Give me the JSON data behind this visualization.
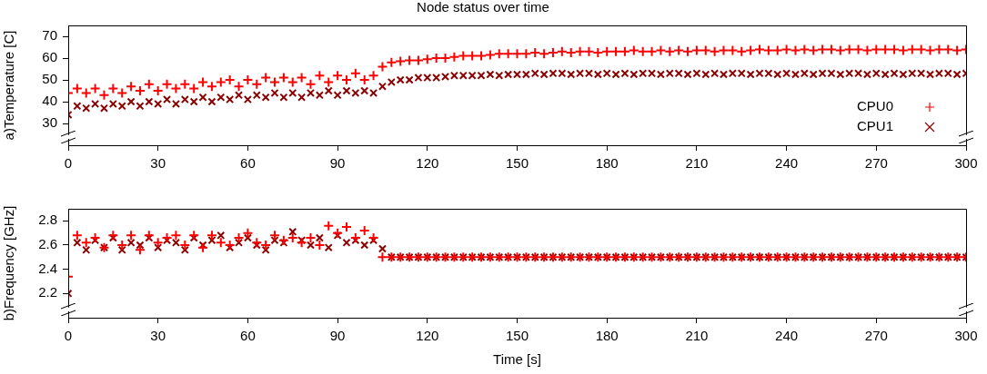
{
  "chart_data": [
    {
      "type": "scatter",
      "title": "Node status over time",
      "ylabel": "a)Temperature [C]",
      "x": [
        0,
        3,
        6,
        9,
        12,
        15,
        18,
        21,
        24,
        27,
        30,
        33,
        36,
        39,
        42,
        45,
        48,
        51,
        54,
        57,
        60,
        63,
        66,
        69,
        72,
        75,
        78,
        81,
        84,
        87,
        90,
        93,
        96,
        99,
        102,
        105,
        108,
        111,
        114,
        117,
        120,
        123,
        126,
        129,
        132,
        135,
        138,
        141,
        144,
        147,
        150,
        153,
        156,
        159,
        162,
        165,
        168,
        171,
        174,
        177,
        180,
        183,
        186,
        189,
        192,
        195,
        198,
        201,
        204,
        207,
        210,
        213,
        216,
        219,
        222,
        225,
        228,
        231,
        234,
        237,
        240,
        243,
        246,
        249,
        252,
        255,
        258,
        261,
        264,
        267,
        270,
        273,
        276,
        279,
        282,
        285,
        288,
        291,
        294,
        297,
        300
      ],
      "series": [
        {
          "name": "CPU0",
          "color": "#ff0000",
          "marker": "cross",
          "values": [
            44,
            46,
            44,
            46,
            43,
            46,
            44,
            47,
            45,
            48,
            45,
            48,
            46,
            48,
            46,
            49,
            47,
            49,
            50,
            47,
            50,
            48,
            51,
            49,
            51,
            49,
            51,
            48,
            52,
            49,
            52,
            50,
            53,
            50,
            52,
            56,
            58,
            58.5,
            59,
            59,
            59.5,
            60,
            60,
            60.5,
            61,
            61,
            61,
            61.5,
            62,
            62,
            62,
            62,
            62.5,
            62,
            62.5,
            63,
            62.5,
            63,
            63,
            62.5,
            63,
            63,
            63,
            63.5,
            63,
            63,
            63.5,
            63,
            63.5,
            63,
            63.5,
            63.5,
            63,
            63.5,
            63.5,
            63,
            63.5,
            64,
            63.5,
            63.5,
            64,
            63.5,
            64,
            63.5,
            64,
            64,
            63.5,
            64,
            64,
            63.5,
            64,
            64,
            64,
            63.5,
            64,
            64,
            63.5,
            64,
            64,
            63.5,
            64
          ]
        },
        {
          "name": "CPU1",
          "color": "#8b0000",
          "marker": "x",
          "values": [
            34,
            38,
            37,
            39,
            37,
            39,
            38,
            40,
            38,
            40,
            39,
            41,
            39,
            41,
            40,
            42,
            40,
            42,
            41,
            43,
            41,
            43,
            42,
            44,
            42,
            44,
            42,
            44,
            43,
            45,
            43,
            45,
            44,
            45,
            44,
            47,
            49,
            50,
            50,
            51,
            51,
            51,
            51.5,
            52,
            52,
            52,
            52,
            52.5,
            52,
            52.5,
            52.5,
            52.5,
            53,
            52.5,
            53,
            53,
            52.5,
            53,
            53,
            52.5,
            53,
            52.5,
            53,
            52.5,
            53,
            53,
            52.5,
            53,
            53,
            52.5,
            53,
            52.5,
            53,
            52.5,
            53,
            53,
            52.5,
            53,
            53,
            52.5,
            53,
            52.5,
            53,
            52.5,
            53,
            53,
            52.5,
            53,
            53,
            52.5,
            53,
            52.5,
            53,
            52.5,
            53,
            53,
            52.5,
            53,
            53,
            52.5,
            53
          ]
        }
      ],
      "xlim": [
        0,
        300
      ],
      "xticks": [
        0,
        30,
        60,
        90,
        120,
        150,
        180,
        210,
        240,
        270,
        300
      ],
      "ylim": [
        20,
        75
      ],
      "yticks": [
        30,
        40,
        50,
        60,
        70
      ],
      "legend": "bottom right",
      "grid": false
    },
    {
      "type": "scatter",
      "ylabel": "b)Frequency [GHz]",
      "xlabel": "Time [s]",
      "x": [
        0,
        3,
        6,
        9,
        12,
        15,
        18,
        21,
        24,
        27,
        30,
        33,
        36,
        39,
        42,
        45,
        48,
        51,
        54,
        57,
        60,
        63,
        66,
        69,
        72,
        75,
        78,
        81,
        84,
        87,
        90,
        93,
        96,
        99,
        102,
        105,
        108,
        111,
        114,
        117,
        120,
        123,
        126,
        129,
        132,
        135,
        138,
        141,
        144,
        147,
        150,
        153,
        156,
        159,
        162,
        165,
        168,
        171,
        174,
        177,
        180,
        183,
        186,
        189,
        192,
        195,
        198,
        201,
        204,
        207,
        210,
        213,
        216,
        219,
        222,
        225,
        228,
        231,
        234,
        237,
        240,
        243,
        246,
        249,
        252,
        255,
        258,
        261,
        264,
        267,
        270,
        273,
        276,
        279,
        282,
        285,
        288,
        291,
        294,
        297,
        300
      ],
      "series": [
        {
          "color": "#ff0000",
          "marker": "cross",
          "values": [
            2.34,
            2.68,
            2.62,
            2.66,
            2.58,
            2.68,
            2.6,
            2.68,
            2.56,
            2.68,
            2.62,
            2.66,
            2.68,
            2.6,
            2.68,
            2.58,
            2.68,
            2.62,
            2.6,
            2.66,
            2.7,
            2.62,
            2.6,
            2.68,
            2.64,
            2.66,
            2.62,
            2.66,
            2.6,
            2.76,
            2.7,
            2.75,
            2.66,
            2.72,
            2.66,
            2.5,
            2.5,
            2.5,
            2.5,
            2.5,
            2.5,
            2.5,
            2.5,
            2.5,
            2.5,
            2.5,
            2.5,
            2.5,
            2.5,
            2.5,
            2.5,
            2.5,
            2.5,
            2.5,
            2.5,
            2.5,
            2.5,
            2.5,
            2.5,
            2.5,
            2.5,
            2.5,
            2.5,
            2.5,
            2.5,
            2.5,
            2.5,
            2.5,
            2.5,
            2.5,
            2.5,
            2.5,
            2.5,
            2.5,
            2.5,
            2.5,
            2.5,
            2.5,
            2.5,
            2.5,
            2.5,
            2.5,
            2.5,
            2.5,
            2.5,
            2.5,
            2.5,
            2.5,
            2.5,
            2.5,
            2.5,
            2.5,
            2.5,
            2.5,
            2.5,
            2.5,
            2.5,
            2.5,
            2.5,
            2.5,
            2.5
          ]
        },
        {
          "color": "#8b0000",
          "marker": "x",
          "values": [
            2.2,
            2.62,
            2.56,
            2.64,
            2.58,
            2.66,
            2.56,
            2.62,
            2.6,
            2.66,
            2.58,
            2.64,
            2.62,
            2.56,
            2.66,
            2.6,
            2.64,
            2.68,
            2.58,
            2.62,
            2.66,
            2.6,
            2.56,
            2.64,
            2.62,
            2.71,
            2.64,
            2.6,
            2.66,
            2.58,
            2.68,
            2.62,
            2.64,
            2.6,
            2.64,
            2.57,
            2.5,
            2.5,
            2.5,
            2.5,
            2.5,
            2.5,
            2.5,
            2.5,
            2.5,
            2.5,
            2.5,
            2.5,
            2.5,
            2.5,
            2.5,
            2.5,
            2.5,
            2.5,
            2.5,
            2.5,
            2.5,
            2.5,
            2.5,
            2.5,
            2.5,
            2.5,
            2.5,
            2.5,
            2.5,
            2.5,
            2.5,
            2.5,
            2.5,
            2.5,
            2.5,
            2.5,
            2.5,
            2.5,
            2.5,
            2.5,
            2.5,
            2.5,
            2.5,
            2.5,
            2.5,
            2.5,
            2.5,
            2.5,
            2.5,
            2.5,
            2.5,
            2.5,
            2.5,
            2.5,
            2.5,
            2.5,
            2.5,
            2.5,
            2.5,
            2.5,
            2.5,
            2.5,
            2.5,
            2.5,
            2.5
          ]
        }
      ],
      "xlim": [
        0,
        300
      ],
      "xticks": [
        0,
        30,
        60,
        90,
        120,
        150,
        180,
        210,
        240,
        270,
        300
      ],
      "ylim": [
        2.0,
        2.9
      ],
      "yticks": [
        2.2,
        2.4,
        2.6,
        2.8
      ],
      "grid": false
    }
  ]
}
